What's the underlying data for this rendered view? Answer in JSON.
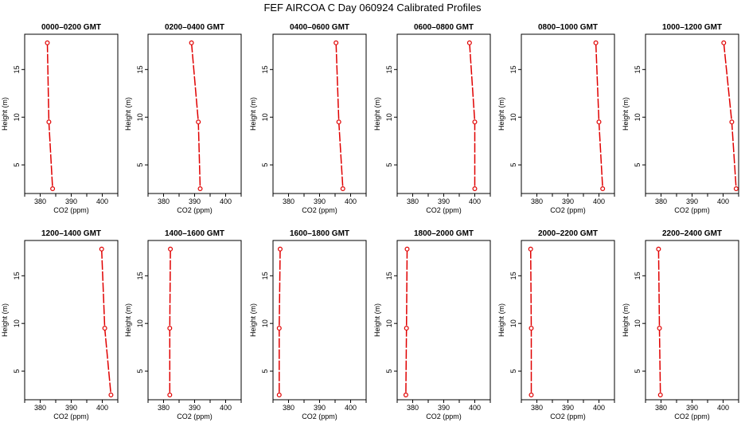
{
  "page": {
    "title": "FEF AIRCOA C  Day 060924  Calibrated Profiles"
  },
  "chart_data": [
    {
      "type": "line",
      "title": "0000–0200 GMT",
      "xlabel": "CO2 (ppm)",
      "ylabel": "Height (m)",
      "xlim": [
        375,
        405
      ],
      "ylim": [
        2,
        18.7
      ],
      "xticks": [
        380,
        390,
        400
      ],
      "yticks": [
        5,
        10,
        15
      ],
      "x": [
        382.3,
        382.8,
        384.0
      ],
      "y": [
        17.8,
        9.5,
        2.5
      ],
      "color": "#e00000"
    },
    {
      "type": "line",
      "title": "0200–0400 GMT",
      "xlabel": "CO2 (ppm)",
      "ylabel": "Height (m)",
      "xlim": [
        375,
        405
      ],
      "ylim": [
        2,
        18.7
      ],
      "xticks": [
        380,
        390,
        400
      ],
      "yticks": [
        5,
        10,
        15
      ],
      "x": [
        389.0,
        391.2,
        391.8
      ],
      "y": [
        17.8,
        9.5,
        2.5
      ],
      "color": "#e00000"
    },
    {
      "type": "line",
      "title": "0400–0600 GMT",
      "xlabel": "CO2 (ppm)",
      "ylabel": "Height (m)",
      "xlim": [
        375,
        405
      ],
      "ylim": [
        2,
        18.7
      ],
      "xticks": [
        380,
        390,
        400
      ],
      "yticks": [
        5,
        10,
        15
      ],
      "x": [
        395.3,
        396.2,
        397.5
      ],
      "y": [
        17.8,
        9.5,
        2.5
      ],
      "color": "#e00000"
    },
    {
      "type": "line",
      "title": "0600–0800 GMT",
      "xlabel": "CO2 (ppm)",
      "ylabel": "Height (m)",
      "xlim": [
        375,
        405
      ],
      "ylim": [
        2,
        18.7
      ],
      "xticks": [
        380,
        390,
        400
      ],
      "yticks": [
        5,
        10,
        15
      ],
      "x": [
        398.3,
        400.0,
        400.0
      ],
      "y": [
        17.8,
        9.5,
        2.5
      ],
      "color": "#e00000"
    },
    {
      "type": "line",
      "title": "0800–1000 GMT",
      "xlabel": "CO2 (ppm)",
      "ylabel": "Height (m)",
      "xlim": [
        375,
        405
      ],
      "ylim": [
        2,
        18.7
      ],
      "xticks": [
        380,
        390,
        400
      ],
      "yticks": [
        5,
        10,
        15
      ],
      "x": [
        399.0,
        400.0,
        401.2
      ],
      "y": [
        17.8,
        9.5,
        2.5
      ],
      "color": "#e00000"
    },
    {
      "type": "line",
      "title": "1000–1200 GMT",
      "xlabel": "CO2 (ppm)",
      "ylabel": "Height (m)",
      "xlim": [
        375,
        405
      ],
      "ylim": [
        2,
        18.7
      ],
      "xticks": [
        380,
        390,
        400
      ],
      "yticks": [
        5,
        10,
        15
      ],
      "x": [
        400.2,
        402.8,
        404.2
      ],
      "y": [
        17.8,
        9.5,
        2.5
      ],
      "color": "#e00000"
    },
    {
      "type": "line",
      "title": "1200–1400 GMT",
      "xlabel": "CO2 (ppm)",
      "ylabel": "Height (m)",
      "xlim": [
        375,
        405
      ],
      "ylim": [
        2,
        18.7
      ],
      "xticks": [
        380,
        390,
        400
      ],
      "yticks": [
        5,
        10,
        15
      ],
      "x": [
        399.8,
        400.8,
        402.8
      ],
      "y": [
        17.8,
        9.5,
        2.5
      ],
      "color": "#e00000"
    },
    {
      "type": "line",
      "title": "1400–1600 GMT",
      "xlabel": "CO2 (ppm)",
      "ylabel": "Height (m)",
      "xlim": [
        375,
        405
      ],
      "ylim": [
        2,
        18.7
      ],
      "xticks": [
        380,
        390,
        400
      ],
      "yticks": [
        5,
        10,
        15
      ],
      "x": [
        382.2,
        382.0,
        382.0
      ],
      "y": [
        17.8,
        9.5,
        2.5
      ],
      "color": "#e00000"
    },
    {
      "type": "line",
      "title": "1600–1800 GMT",
      "xlabel": "CO2 (ppm)",
      "ylabel": "Height (m)",
      "xlim": [
        375,
        405
      ],
      "ylim": [
        2,
        18.7
      ],
      "xticks": [
        380,
        390,
        400
      ],
      "yticks": [
        5,
        10,
        15
      ],
      "x": [
        377.3,
        377.0,
        377.0
      ],
      "y": [
        17.8,
        9.5,
        2.5
      ],
      "color": "#e00000"
    },
    {
      "type": "line",
      "title": "1800–2000 GMT",
      "xlabel": "CO2 (ppm)",
      "ylabel": "Height (m)",
      "xlim": [
        375,
        405
      ],
      "ylim": [
        2,
        18.7
      ],
      "xticks": [
        380,
        390,
        400
      ],
      "yticks": [
        5,
        10,
        15
      ],
      "x": [
        378.2,
        378.0,
        377.8
      ],
      "y": [
        17.8,
        9.5,
        2.5
      ],
      "color": "#e00000"
    },
    {
      "type": "line",
      "title": "2000–2200 GMT",
      "xlabel": "CO2 (ppm)",
      "ylabel": "Height (m)",
      "xlim": [
        375,
        405
      ],
      "ylim": [
        2,
        18.7
      ],
      "xticks": [
        380,
        390,
        400
      ],
      "yticks": [
        5,
        10,
        15
      ],
      "x": [
        378.0,
        378.2,
        378.2
      ],
      "y": [
        17.8,
        9.5,
        2.5
      ],
      "color": "#e00000"
    },
    {
      "type": "line",
      "title": "2200–2400 GMT",
      "xlabel": "CO2 (ppm)",
      "ylabel": "Height (m)",
      "xlim": [
        375,
        405
      ],
      "ylim": [
        2,
        18.7
      ],
      "xticks": [
        380,
        390,
        400
      ],
      "yticks": [
        5,
        10,
        15
      ],
      "x": [
        379.2,
        379.5,
        379.8
      ],
      "y": [
        17.8,
        9.5,
        2.5
      ],
      "color": "#e00000"
    }
  ]
}
